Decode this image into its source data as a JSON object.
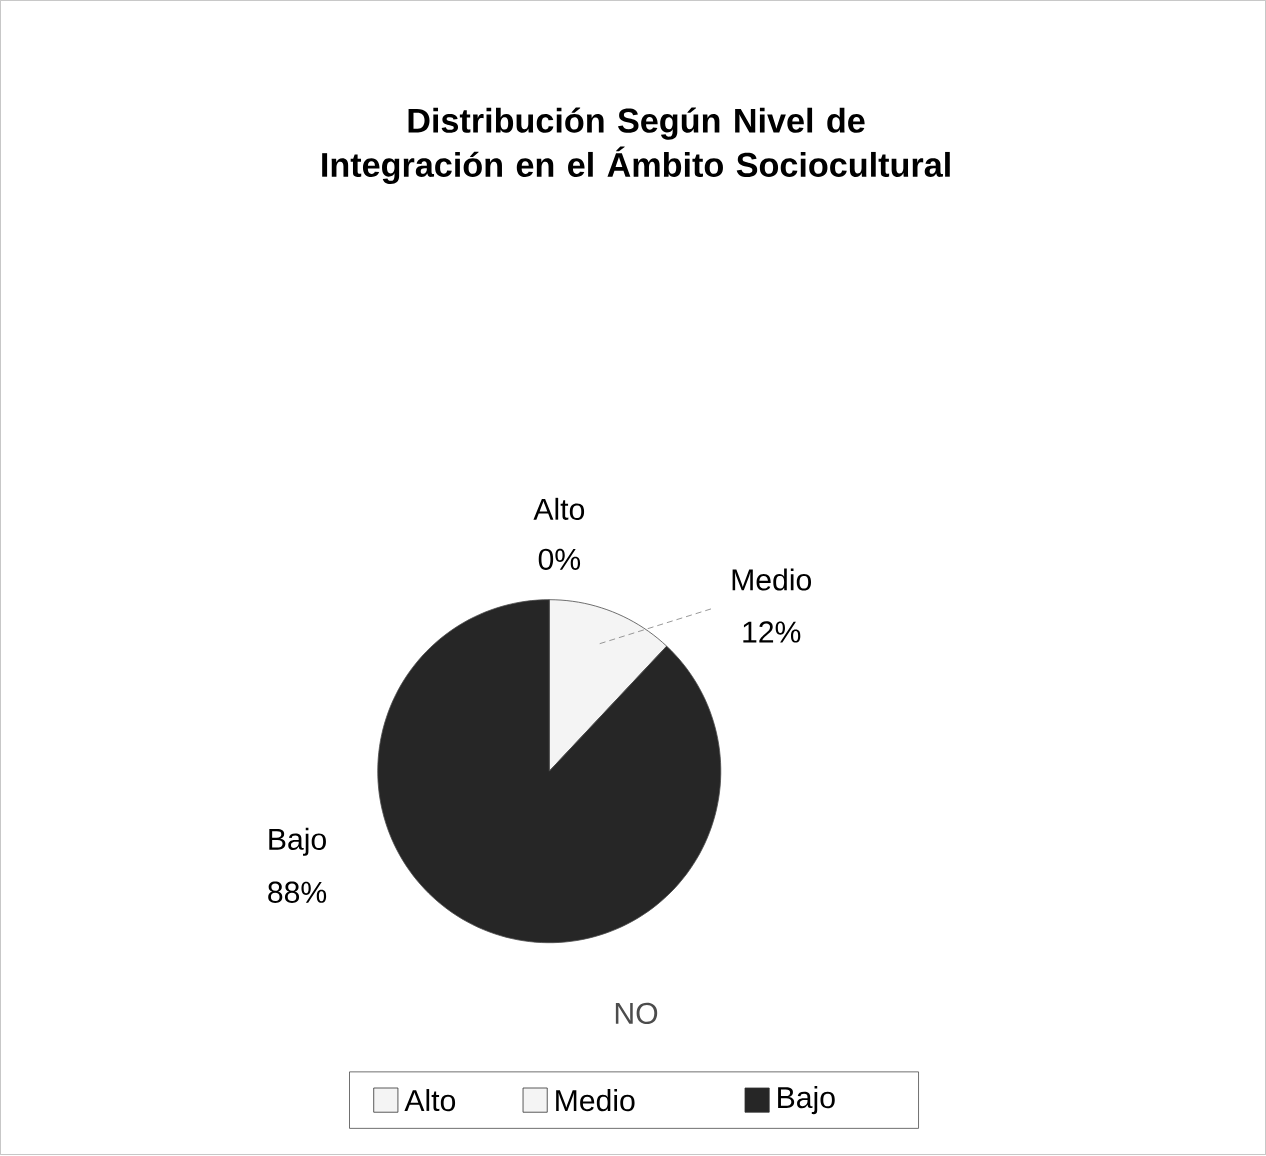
{
  "chart_data": {
    "type": "pie",
    "title": "Distribución Según Nivel de Integración en el Ámbito Sociocultural",
    "categories": [
      "Alto",
      "Medio",
      "Bajo"
    ],
    "values": [
      0,
      12,
      88
    ],
    "value_labels": [
      "0%",
      "12%",
      "88%"
    ],
    "colors": [
      "#f4f4f4",
      "#f4f4f4",
      "#262626"
    ],
    "legend": "bottom",
    "annotations": [
      "NO"
    ]
  }
}
